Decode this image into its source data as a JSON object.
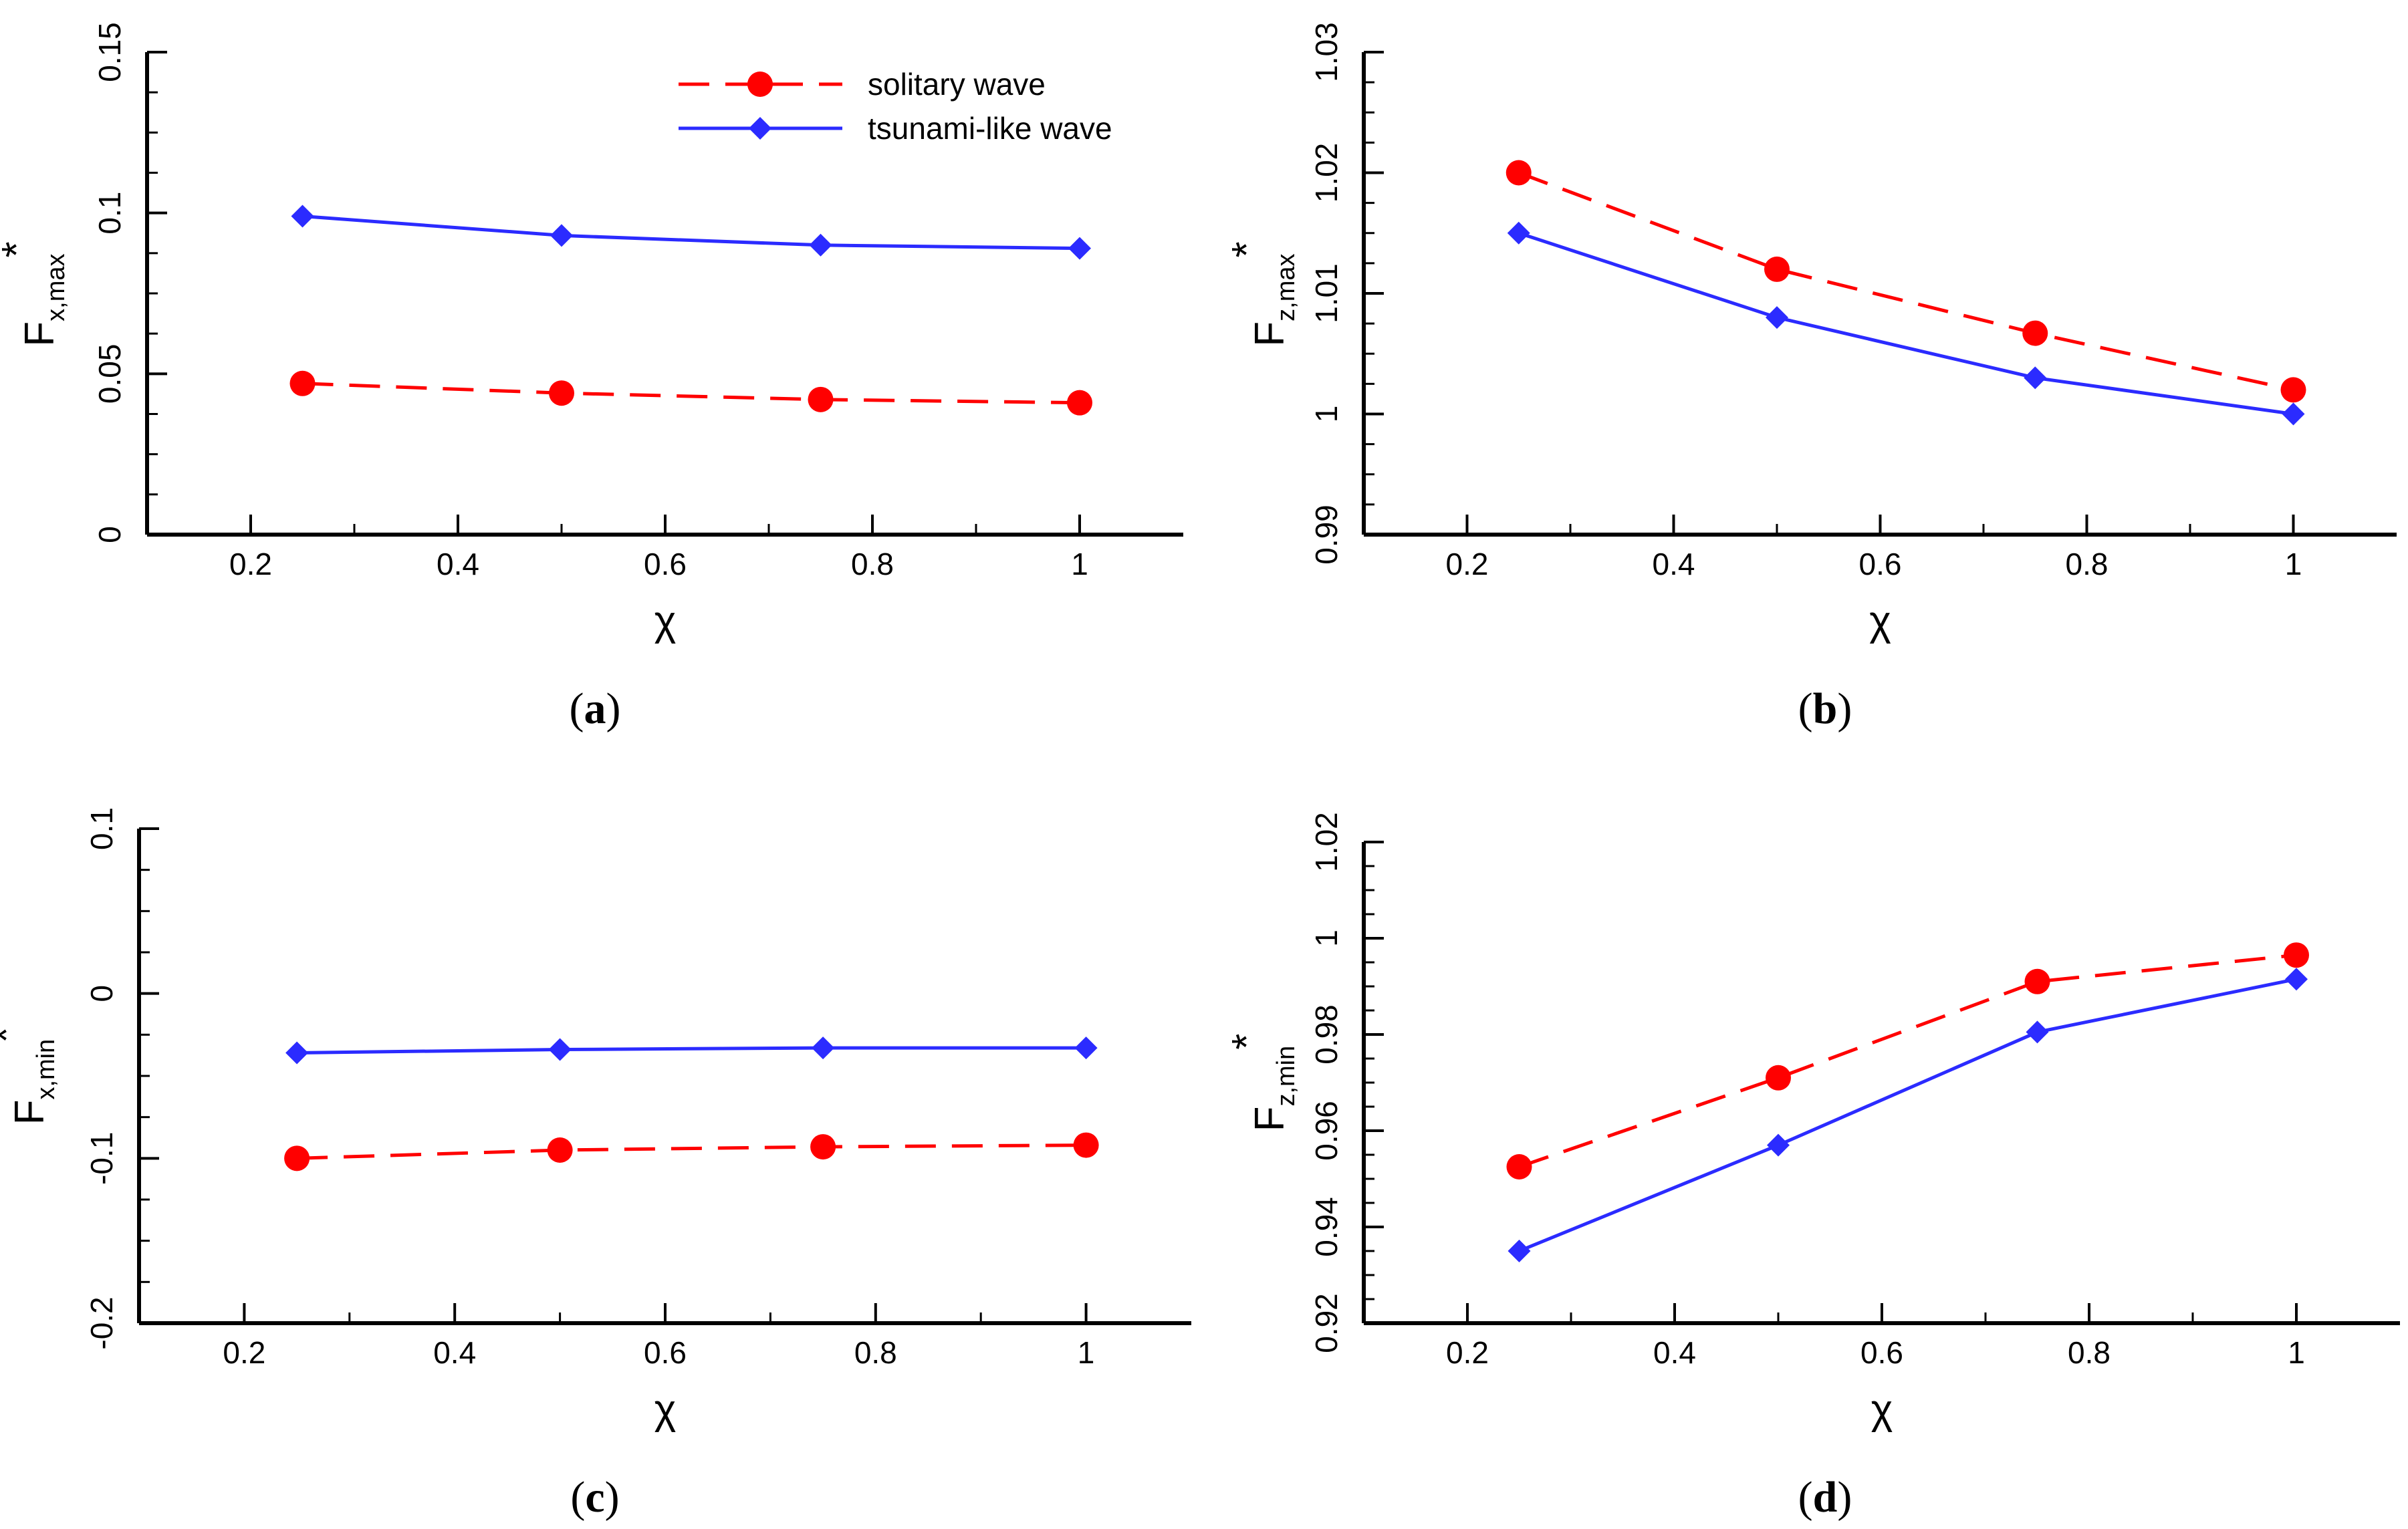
{
  "chart_data": [
    {
      "type": "line",
      "caption": "a",
      "xlabel": "χ",
      "ylabel": {
        "main": "F",
        "sub": "x,max",
        "sup": "*"
      },
      "xlim": [
        0.1,
        1.1
      ],
      "ylim": [
        0,
        0.15
      ],
      "xticks": [
        "0.2",
        "0.4",
        "0.6",
        "0.8",
        "1"
      ],
      "yticks": [
        "0",
        "0.05",
        "0.1",
        "0.15"
      ],
      "x": [
        0.25,
        0.5,
        0.75,
        1.0
      ],
      "legend": "top-right",
      "series": [
        {
          "name": "solitary wave",
          "values": [
            0.047,
            0.044,
            0.042,
            0.041
          ]
        },
        {
          "name": "tsunami-like wave",
          "values": [
            0.099,
            0.093,
            0.09,
            0.089
          ]
        }
      ]
    },
    {
      "type": "line",
      "caption": "b",
      "xlabel": "χ",
      "ylabel": {
        "main": "F",
        "sub": "z,max",
        "sup": "*"
      },
      "xlim": [
        0.1,
        1.1
      ],
      "ylim": [
        0.99,
        1.03
      ],
      "xticks": [
        "0.2",
        "0.4",
        "0.6",
        "0.8",
        "1"
      ],
      "yticks": [
        "0.99",
        "1",
        "1.01",
        "1.02",
        "1.03"
      ],
      "x": [
        0.25,
        0.5,
        0.75,
        1.0
      ],
      "series": [
        {
          "name": "solitary wave",
          "values": [
            1.02,
            1.012,
            1.0067,
            1.002
          ]
        },
        {
          "name": "tsunami-like wave",
          "values": [
            1.015,
            1.008,
            1.003,
            1.0
          ]
        }
      ]
    },
    {
      "type": "line",
      "caption": "c",
      "xlabel": "χ",
      "ylabel": {
        "main": "F",
        "sub": "x,min",
        "sup": "*"
      },
      "xlim": [
        0.1,
        1.1
      ],
      "ylim": [
        -0.2,
        0.1
      ],
      "xticks": [
        "0.2",
        "0.4",
        "0.6",
        "0.8",
        "1"
      ],
      "yticks": [
        "-0.2",
        "-0.1",
        "0",
        "0.1"
      ],
      "x": [
        0.25,
        0.5,
        0.75,
        1.0
      ],
      "series": [
        {
          "name": "solitary wave",
          "values": [
            -0.1,
            -0.095,
            -0.093,
            -0.092
          ]
        },
        {
          "name": "tsunami-like wave",
          "values": [
            -0.036,
            -0.034,
            -0.033,
            -0.033
          ]
        }
      ]
    },
    {
      "type": "line",
      "caption": "d",
      "xlabel": "χ",
      "ylabel": {
        "main": "F",
        "sub": "z,min",
        "sup": "*"
      },
      "xlim": [
        0.1,
        1.1
      ],
      "ylim": [
        0.92,
        1.02
      ],
      "xticks": [
        "0.2",
        "0.4",
        "0.6",
        "0.8",
        "1"
      ],
      "yticks": [
        "0.92",
        "0.94",
        "0.96",
        "0.98",
        "1",
        "1.02"
      ],
      "x": [
        0.25,
        0.5,
        0.75,
        1.0
      ],
      "series": [
        {
          "name": "solitary wave",
          "values": [
            0.9525,
            0.971,
            0.991,
            0.9965
          ]
        },
        {
          "name": "tsunami-like wave",
          "values": [
            0.935,
            0.957,
            0.9805,
            0.9915
          ]
        }
      ]
    }
  ],
  "styles": {
    "solitary_color": "#ff0000",
    "tsunami_color": "#2b2bff",
    "axis_color": "#000000"
  }
}
